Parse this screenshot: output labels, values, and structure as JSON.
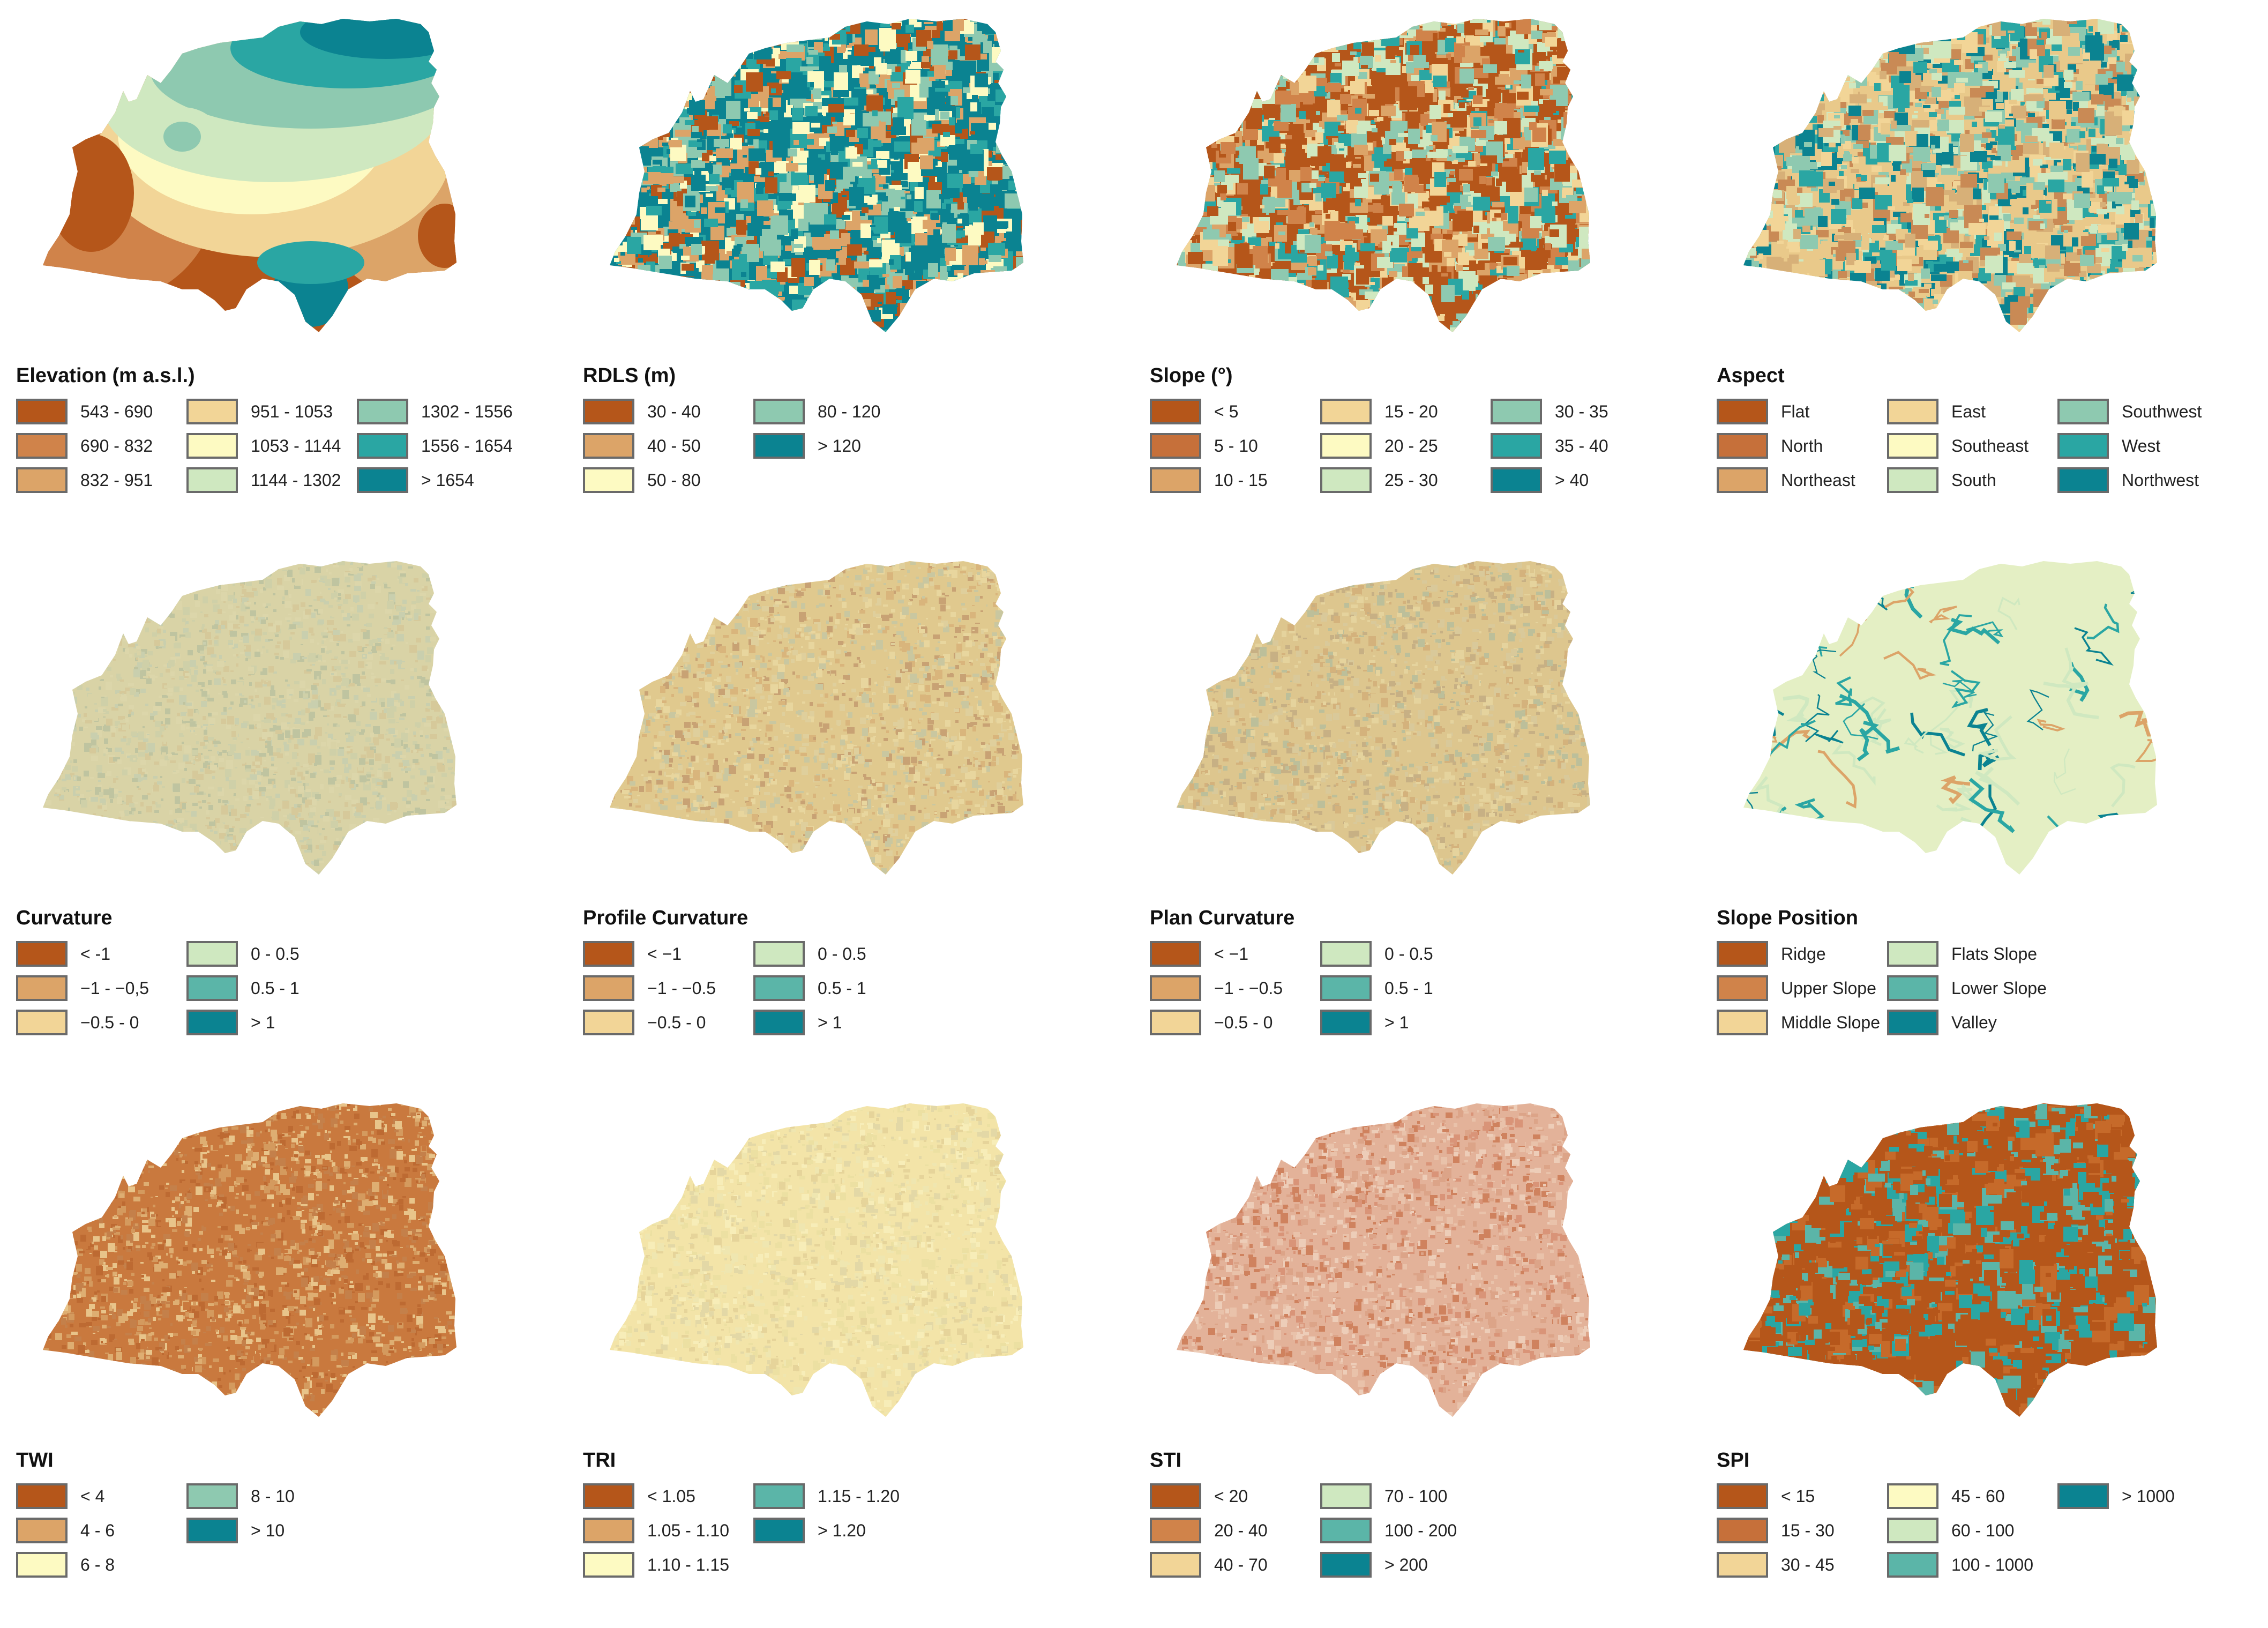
{
  "panels": [
    {
      "title": "Elevation (m a.s.l.)",
      "style": "bands",
      "colors": [
        "#b5561a",
        "#d0834a",
        "#dca468",
        "#f2d597",
        "#fdfac2",
        "#cfe8c0",
        "#8ec9b0",
        "#2aa6a3",
        "#0b8391"
      ],
      "columns": 3,
      "items": [
        {
          "label": "543 - 690",
          "color": "#b5561a"
        },
        {
          "label": "690 - 832",
          "color": "#d0834a"
        },
        {
          "label": "832 - 951",
          "color": "#dca468"
        },
        {
          "label": "951 - 1053",
          "color": "#f2d597"
        },
        {
          "label": "1053 - 1144",
          "color": "#fdfac2"
        },
        {
          "label": "1144 - 1302",
          "color": "#cfe8c0"
        },
        {
          "label": "1302 - 1556",
          "color": "#8ec9b0"
        },
        {
          "label": "1556 - 1654",
          "color": "#2aa6a3"
        },
        {
          "label": "> 1654",
          "color": "#0b8391"
        }
      ]
    },
    {
      "title": "RDLS (m)",
      "style": "mixed",
      "colors": [
        "#0b8391",
        "#0b8391",
        "#2aa6a3",
        "#8ec9b0",
        "#fdfac2",
        "#dca468",
        "#b5561a"
      ],
      "columns": 2,
      "items": [
        {
          "label": "30 - 40",
          "color": "#b5561a"
        },
        {
          "label": "40 - 50",
          "color": "#dca468"
        },
        {
          "label": "50 - 80",
          "color": "#fdfac2"
        },
        {
          "label": "80 - 120",
          "color": "#8ec9b0"
        },
        {
          "label": "> 120",
          "color": "#0b8391"
        }
      ]
    },
    {
      "title": "Slope (°)",
      "style": "mixed",
      "colors": [
        "#b5561a",
        "#b5561a",
        "#d0834a",
        "#dca468",
        "#f2d597",
        "#cfe8c0",
        "#8ec9b0",
        "#2aa6a3"
      ],
      "columns": 3,
      "items": [
        {
          "label": "< 5",
          "color": "#b5561a"
        },
        {
          "label": "5 - 10",
          "color": "#c6703a"
        },
        {
          "label": "10 - 15",
          "color": "#dca468"
        },
        {
          "label": "15 - 20",
          "color": "#f2d597"
        },
        {
          "label": "20 - 25",
          "color": "#fdfac2"
        },
        {
          "label": "25 - 30",
          "color": "#cfe8c0"
        },
        {
          "label": "30 - 35",
          "color": "#8ec9b0"
        },
        {
          "label": "35 - 40",
          "color": "#2aa6a3"
        },
        {
          "label": "> 40",
          "color": "#0b8391"
        }
      ]
    },
    {
      "title": "Aspect",
      "style": "mixed",
      "colors": [
        "#e9c98a",
        "#2aa6a3",
        "#d7b078",
        "#8ec9b0",
        "#c98a55",
        "#f2d597",
        "#0b8391",
        "#cfe8c0"
      ],
      "columns": 3,
      "items": [
        {
          "label": "Flat",
          "color": "#b5561a"
        },
        {
          "label": "North",
          "color": "#c6703a"
        },
        {
          "label": "Northeast",
          "color": "#dca468"
        },
        {
          "label": "East",
          "color": "#f2d597"
        },
        {
          "label": "Southeast",
          "color": "#fdfac2"
        },
        {
          "label": "South",
          "color": "#cfe8c0"
        },
        {
          "label": "Southwest",
          "color": "#8ec9b0"
        },
        {
          "label": "West",
          "color": "#2aa6a3"
        },
        {
          "label": "Northwest",
          "color": "#0b8391"
        }
      ]
    },
    {
      "title": "Curvature",
      "style": "noise",
      "colors": [
        "#d9d3a6",
        "#cfd0a8",
        "#d6c99a",
        "#c9cfae",
        "#dcd6aa",
        "#bfc4a0"
      ],
      "columns": 2,
      "items": [
        {
          "label": "< -1",
          "color": "#b5561a"
        },
        {
          "label": "−1 - −0,5",
          "color": "#dca468"
        },
        {
          "label": "−0.5 - 0",
          "color": "#f2d597"
        },
        {
          "label": "0 - 0.5",
          "color": "#cfe8c0"
        },
        {
          "label": "0.5 - 1",
          "color": "#5bb5a8"
        },
        {
          "label": "> 1",
          "color": "#0b8391"
        }
      ]
    },
    {
      "title": "Profile Curvature",
      "style": "noise",
      "colors": [
        "#e0c98e",
        "#d9b57c",
        "#e8d69e",
        "#c8a274",
        "#dfcf9c",
        "#c9c7a0"
      ],
      "columns": 2,
      "items": [
        {
          "label": "< −1",
          "color": "#b5561a"
        },
        {
          "label": "−1 - −0.5",
          "color": "#dca468"
        },
        {
          "label": "−0.5 - 0",
          "color": "#f2d597"
        },
        {
          "label": "0 - 0.5",
          "color": "#cfe8c0"
        },
        {
          "label": "0.5 - 1",
          "color": "#5bb5a8"
        },
        {
          "label": "> 1",
          "color": "#0b8391"
        }
      ]
    },
    {
      "title": "Plan Curvature",
      "style": "noise",
      "colors": [
        "#ddc68e",
        "#d4b27c",
        "#e5d39d",
        "#c7b084",
        "#d9c99a",
        "#bcbf9a"
      ],
      "columns": 2,
      "items": [
        {
          "label": "< −1",
          "color": "#b5561a"
        },
        {
          "label": "−1 - −0.5",
          "color": "#dca468"
        },
        {
          "label": "−0.5 - 0",
          "color": "#f2d597"
        },
        {
          "label": "0 - 0.5",
          "color": "#cfe8c0"
        },
        {
          "label": "0.5 - 1",
          "color": "#5bb5a8"
        },
        {
          "label": "> 1",
          "color": "#0b8391"
        }
      ]
    },
    {
      "title": "Slope Position",
      "style": "streams",
      "colors": [
        "#e4efc4",
        "#e4efc4",
        "#e4efc4",
        "#cfe8c0",
        "#2aa6a3",
        "#0b8391",
        "#dca468"
      ],
      "columns": 2,
      "items": [
        {
          "label": "Ridge",
          "color": "#b5561a"
        },
        {
          "label": "Upper Slope",
          "color": "#d0834a"
        },
        {
          "label": "Middle Slope",
          "color": "#f2d597"
        },
        {
          "label": "Flats Slope",
          "color": "#cfe8c0"
        },
        {
          "label": "Lower Slope",
          "color": "#5bb5a8"
        },
        {
          "label": "Valley",
          "color": "#0b8391"
        }
      ]
    },
    {
      "title": "TWI",
      "style": "noise",
      "colors": [
        "#c9793e",
        "#d49a5e",
        "#bd6a32",
        "#deae72",
        "#e8c48a",
        "#c4804a"
      ],
      "columns": 2,
      "items": [
        {
          "label": "< 4",
          "color": "#b5561a"
        },
        {
          "label": "4 - 6",
          "color": "#dca468"
        },
        {
          "label": "6 - 8",
          "color": "#fdfac2"
        },
        {
          "label": "8 - 10",
          "color": "#8ec9b0"
        },
        {
          "label": "> 10",
          "color": "#0b8391"
        }
      ]
    },
    {
      "title": "TRI",
      "style": "noise",
      "colors": [
        "#f3e4a8",
        "#ece0a2",
        "#f7edb8",
        "#e6d49a",
        "#efe6b0",
        "#e3d8a6"
      ],
      "columns": 2,
      "items": [
        {
          "label": "< 1.05",
          "color": "#b5561a"
        },
        {
          "label": "1.05 - 1.10",
          "color": "#dca468"
        },
        {
          "label": "1.10 - 1.15",
          "color": "#fdfac2"
        },
        {
          "label": "1.15 - 1.20",
          "color": "#5bb5a8"
        },
        {
          "label": "> 1.20",
          "color": "#0b8391"
        }
      ]
    },
    {
      "title": "STI",
      "style": "noise",
      "colors": [
        "#e3b299",
        "#d99478",
        "#edcdb8",
        "#cf825e",
        "#e9c2aa",
        "#dca488"
      ],
      "columns": 2,
      "items": [
        {
          "label": "< 20",
          "color": "#b5561a"
        },
        {
          "label": "20 - 40",
          "color": "#d0834a"
        },
        {
          "label": "40 - 70",
          "color": "#f2d597"
        },
        {
          "label": "70 - 100",
          "color": "#cfe8c0"
        },
        {
          "label": "100 - 200",
          "color": "#5bb5a8"
        },
        {
          "label": "> 200",
          "color": "#0b8391"
        }
      ]
    },
    {
      "title": "SPI",
      "style": "mixed",
      "colors": [
        "#b5561a",
        "#b5561a",
        "#b5561a",
        "#c66a2a",
        "#5bb5a8",
        "#2aa6a3",
        "#b5561a"
      ],
      "columns": 3,
      "items": [
        {
          "label": "< 15",
          "color": "#b5561a"
        },
        {
          "label": "15 - 30",
          "color": "#c6703a"
        },
        {
          "label": "30 - 45",
          "color": "#f2d597"
        },
        {
          "label": "45 - 60",
          "color": "#fdfac2"
        },
        {
          "label": "60 - 100",
          "color": "#cfe8c0"
        },
        {
          "label": "100 - 1000",
          "color": "#5bb5a8"
        },
        {
          "label": "> 1000",
          "color": "#0b8391"
        }
      ]
    }
  ]
}
